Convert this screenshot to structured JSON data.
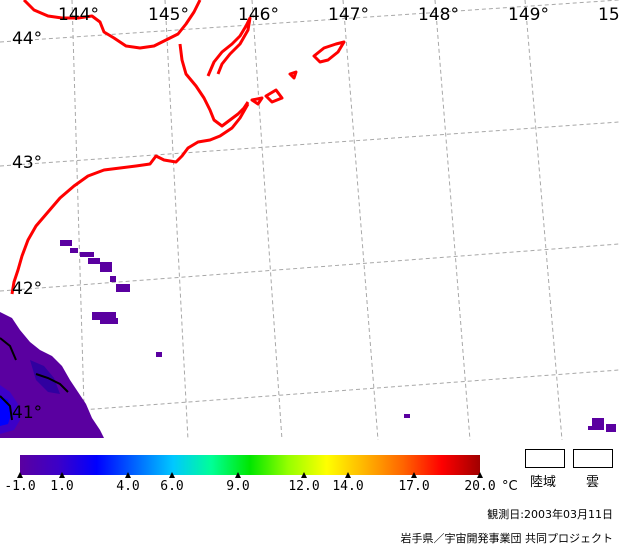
{
  "map": {
    "longitudes": [
      "144°",
      "145°",
      "146°",
      "147°",
      "148°",
      "149°",
      "15"
    ],
    "latitudes": [
      "44°",
      "43°",
      "42°",
      "41°"
    ],
    "coast_color": "#ff0000",
    "grid_color": "#a0a0a0"
  },
  "legend": {
    "tick_labels": [
      "-1.0",
      "1.0",
      "4.0",
      "6.0",
      "9.0",
      "12.0",
      "14.0",
      "17.0",
      "20.0"
    ],
    "unit": "°C",
    "colors": [
      "#5a00a0",
      "#3c00c8",
      "#0000ff",
      "#0064ff",
      "#00c8ff",
      "#00ff96",
      "#00e600",
      "#96ff00",
      "#ffff00",
      "#ffb400",
      "#ff6400",
      "#ff0000",
      "#a00000"
    ],
    "land_label": "陸域",
    "cloud_label": "雲"
  },
  "footer": {
    "date": "観測日:2003年03月11日",
    "credit": "岩手県／宇宙開発事業団 共同プロジェクト"
  }
}
